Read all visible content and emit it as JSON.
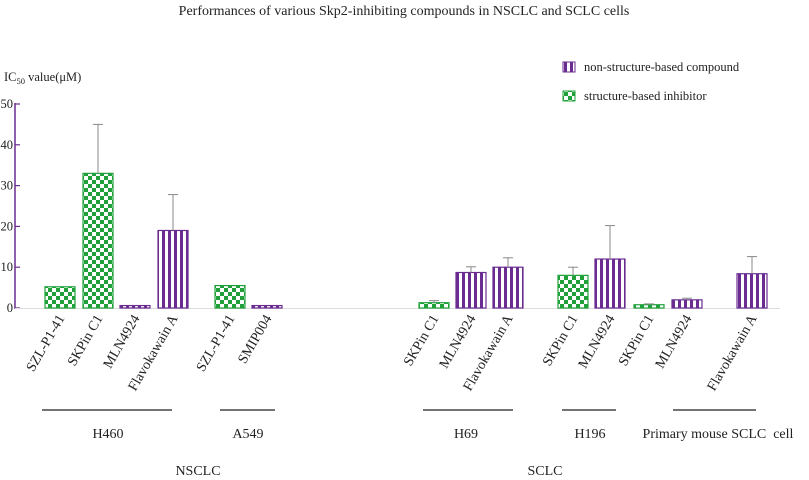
{
  "chart_data": {
    "type": "bar",
    "title": "Performances of various Skp2-inhibiting compounds in NSCLC and SCLC cells",
    "ylabel": "IC50 value(μM)",
    "ylabel_main": "IC",
    "ylabel_sub": "50",
    "ylabel_suffix": " value(μM)",
    "ylim": [
      0,
      50
    ],
    "yticks": [
      "0",
      "10",
      "20",
      "30",
      "40",
      "50"
    ],
    "legend": [
      {
        "key": "non_structure",
        "label": "non-structure-based compound",
        "color": "#6a2c91"
      },
      {
        "key": "structure",
        "label": "structure-based inhibitor",
        "color": "#1fa03a"
      }
    ],
    "bars": [
      {
        "label": "SZL-P1-41",
        "value": 5.2,
        "error": 0,
        "kind": "structure"
      },
      {
        "label": "SKPin C1",
        "value": 33,
        "error": 12,
        "kind": "structure"
      },
      {
        "label": "MLN4924",
        "value": 0.6,
        "error": 0,
        "kind": "non_structure"
      },
      {
        "label": "Flavokawain A",
        "value": 19,
        "error": 8.8,
        "kind": "non_structure"
      },
      {
        "label": "SZL-P1-41",
        "value": 5.5,
        "error": 0,
        "kind": "structure"
      },
      {
        "label": "SMIP004",
        "value": 0.6,
        "error": 0,
        "kind": "non_structure"
      },
      {
        "label": "SKPin C1",
        "value": 1.3,
        "error": 0.5,
        "kind": "structure"
      },
      {
        "label": "MLN4924",
        "value": 8.7,
        "error": 1.4,
        "kind": "non_structure"
      },
      {
        "label": "Flavokawain A",
        "value": 10,
        "error": 2.3,
        "kind": "non_structure"
      },
      {
        "label": "SKPin C1",
        "value": 8,
        "error": 2,
        "kind": "structure"
      },
      {
        "label": "MLN4924",
        "value": 12,
        "error": 8.2,
        "kind": "non_structure"
      },
      {
        "label": "SKPin C1",
        "value": 0.8,
        "error": 0.2,
        "kind": "structure"
      },
      {
        "label": "MLN4924",
        "value": 2,
        "error": 0.4,
        "kind": "non_structure"
      },
      {
        "label": "Flavokawain A",
        "value": 8.4,
        "error": 4.2,
        "kind": "non_structure"
      }
    ],
    "cell_groups": [
      "H460",
      "A549",
      "H69",
      "H196",
      "Primary mouse SCLC  cell"
    ],
    "cancer_groups": [
      "NSCLC",
      "SCLC"
    ]
  }
}
